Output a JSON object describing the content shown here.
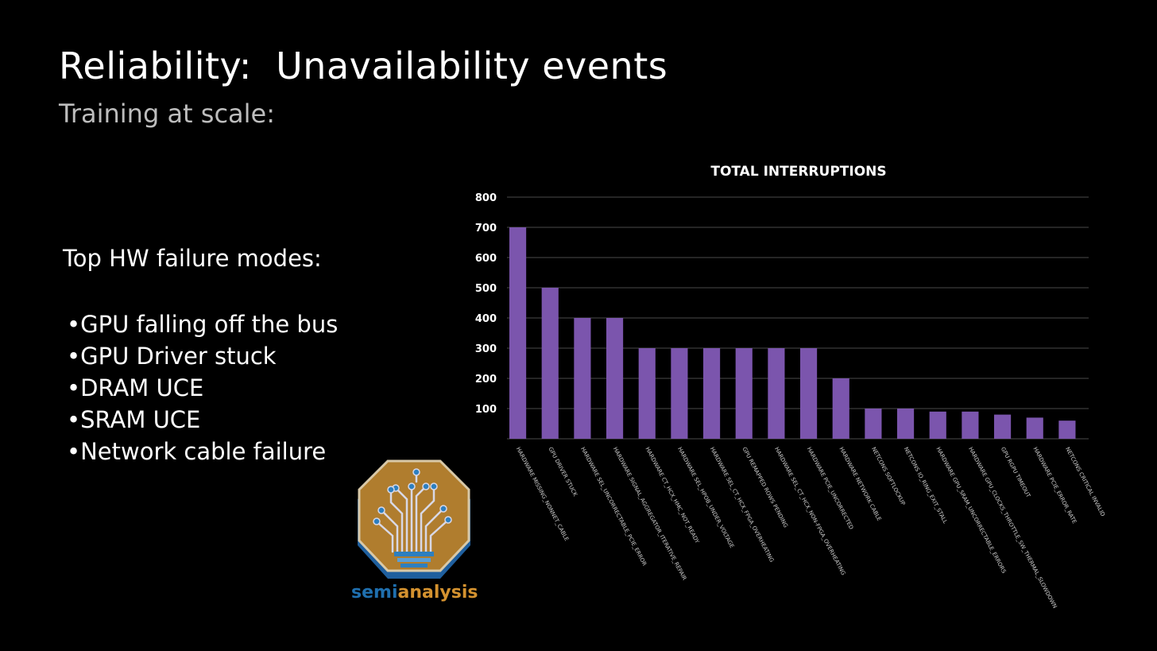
{
  "slide": {
    "title": "Reliability:  Unavailability events",
    "subtitle": "Training at scale:"
  },
  "failure_modes": {
    "heading": "Top HW failure modes:",
    "items": [
      "•GPU falling off the bus",
      "•GPU Driver stuck",
      "•DRAM UCE",
      "•SRAM UCE",
      "•Network cable failure"
    ]
  },
  "logo": {
    "text_part1": "semi",
    "text_part2": "analysis",
    "icon": "circuit-lightbulb-logo",
    "colors": {
      "badge": "#b07d2e",
      "blue": "#1f6fae",
      "orange": "#d4922f"
    }
  },
  "chart_data": {
    "type": "bar",
    "title": "TOTAL INTERRUPTIONS",
    "xlabel": "",
    "ylabel": "",
    "ylim": [
      0,
      800
    ],
    "yticks": [
      100,
      200,
      300,
      400,
      500,
      600,
      700,
      800
    ],
    "grid": true,
    "color": "#7b55ad",
    "categories": [
      "HARDWARE MISSING_NONNET_CABLE",
      "GPU DRIVER STUCK",
      "HARDWARE SEL_UNCORRECTABLE_PCIE_ERROR",
      "HARDWARE SIGNAL_AGGREGATOR_ITERATIVE_REPAIR",
      "HARDWARE CT_HCX_HMC_NOT_READY",
      "HARDWARE SEL_HPOB_UNDER_VOLTAGE",
      "HARDWARE SEL_CT_HCX_FPGA_OVERHEATING",
      "GPU REMAPPED ROWS PENDING",
      "HARDWARE SEL_CT_HCX_NON-FPGA_OVERHEATING",
      "HARDWARE PCIE_UNCORRECTED",
      "HARDWARE NETWORK CABLE",
      "NETCONS SOFTLOCKUP",
      "NETCONS IO_RING_EXIT_STALL",
      "HARDWARE GPU_SRAM_UNCORRECTABLE_ERRORS",
      "HARDWARE GPU_CLOCKS_THROTTLE_SW_THERMAL_SLOWDOWN",
      "GPU RGPU TIMEOUT",
      "HARDWARE PCIE_ERROR_RATE",
      "NETCONS CRITICAL INVALID"
    ],
    "values": [
      700,
      500,
      400,
      400,
      300,
      300,
      300,
      300,
      300,
      300,
      200,
      100,
      100,
      90,
      90,
      80,
      70,
      60
    ]
  }
}
